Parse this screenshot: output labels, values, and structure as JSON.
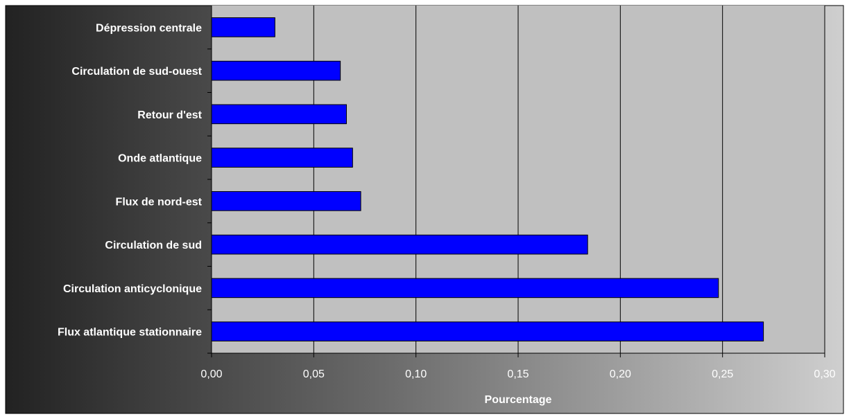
{
  "chart_data": {
    "type": "bar",
    "orientation": "horizontal",
    "categories": [
      "Dépression centrale",
      "Circulation de sud-ouest",
      "Retour d'est",
      "Onde atlantique",
      "Flux de nord-est",
      "Circulation de sud",
      "Circulation anticyclonique",
      "Flux atlantique stationnaire"
    ],
    "values": [
      0.031,
      0.063,
      0.066,
      0.069,
      0.073,
      0.184,
      0.248,
      0.27
    ],
    "title": "",
    "xlabel": "Pourcentage",
    "ylabel": "",
    "xlim": [
      0,
      0.3
    ],
    "xticks": [
      0,
      0.05,
      0.1,
      0.15,
      0.2,
      0.25,
      0.3
    ],
    "xtick_labels": [
      "0,00",
      "0,05",
      "0,10",
      "0,15",
      "0,20",
      "0,25",
      "0,30"
    ],
    "grid": "vertical",
    "legend": "none",
    "colors": {
      "bar": "#0000ff",
      "bar_edge": "#000000",
      "plot_background": "#c0c0c0",
      "gridline": "#000000",
      "text": "#ffffff"
    }
  }
}
